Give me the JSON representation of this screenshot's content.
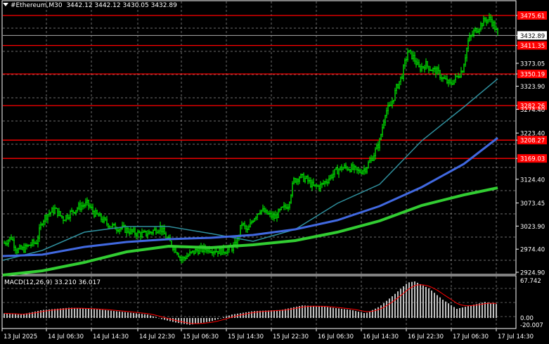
{
  "header": {
    "symbol": "#Ethereum,M30",
    "open": "3442.12",
    "high": "3442.12",
    "low": "3430.05",
    "close": "3432.89"
  },
  "price_axis": {
    "labels": [
      "3475.61",
      "3432.89",
      "3411.35",
      "3373.05",
      "3350.19",
      "3323.90",
      "3282.26",
      "3274.40",
      "3223.40",
      "3208.27",
      "3169.03",
      "3124.40",
      "3073.45",
      "3023.90",
      "2974.40",
      "2924.90"
    ],
    "current_price": "3432.89"
  },
  "levels": [
    "3475.61",
    "3411.35",
    "3350.19",
    "3282.26",
    "3208.27",
    "3169.03"
  ],
  "macd": {
    "label": "MACD(12,26,9)",
    "main": "33.210",
    "signal": "36.017",
    "axis_labels": [
      "67.742",
      "0.00",
      "-20.007"
    ]
  },
  "time_axis": {
    "labels": [
      "13 Jul 2025",
      "14 Jul 06:30",
      "14 Jul 14:30",
      "14 Jul 22:30",
      "15 Jul 06:30",
      "15 Jul 14:30",
      "15 Jul 22:30",
      "16 Jul 06:30",
      "16 Jul 14:30",
      "16 Jul 22:30",
      "17 Jul 06:30",
      "17 Jul 14:30"
    ]
  },
  "colors": {
    "background": "#000000",
    "candles": "#00ff00",
    "grid": "#c8c8c8",
    "level_lines": "#ff0000",
    "ma_fast": "#2f8f9d",
    "ma_mid": "#4169e1",
    "ma_slow": "#32cd32",
    "macd_hist": "#c0c0c0",
    "macd_signal": "#ff0000"
  }
}
